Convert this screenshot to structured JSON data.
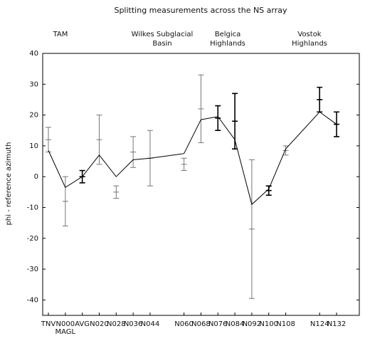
{
  "chart_data": {
    "type": "line",
    "title": "Splitting measurements across the NS array",
    "y_label": "phi - reference azimuth",
    "regions": [
      {
        "lines": [
          "TAM"
        ]
      },
      {
        "lines": [
          "Wilkes Subglacial",
          "Basin"
        ]
      },
      {
        "lines": [
          "Belgica",
          "Highlands"
        ]
      },
      {
        "lines": [
          "Vostok",
          "Highlands"
        ]
      }
    ],
    "categories": [
      "TNV",
      "N000",
      "AVG",
      "N020",
      "N028",
      "N036",
      "N044",
      "N060",
      "N068",
      "N076",
      "N084",
      "N092",
      "N100",
      "N108",
      "N124",
      "N132"
    ],
    "category_note": "MAGL",
    "ylim": [
      -45,
      40
    ],
    "yticks": [
      -40,
      -30,
      -20,
      -10,
      0,
      10,
      20,
      30,
      40
    ],
    "series": [
      {
        "color": "#000000",
        "values": [
          8.5,
          -3.5,
          0,
          7,
          0,
          5.5,
          6,
          7.5,
          18.5,
          19.5,
          12,
          -9,
          -4,
          9,
          21,
          17
        ]
      }
    ],
    "error_bars": [
      {
        "color": "#777777",
        "mid": [
          12,
          -8,
          null,
          12,
          -5,
          8,
          6,
          4,
          22,
          null,
          null,
          -17,
          null,
          8.5,
          null,
          null
        ],
        "low": [
          8,
          -16,
          null,
          4,
          -7,
          3,
          -3,
          2,
          11,
          null,
          null,
          -39.5,
          null,
          7,
          null,
          null
        ],
        "high": [
          16,
          0,
          null,
          20,
          -3,
          13,
          15,
          6,
          33,
          null,
          null,
          5.5,
          null,
          10,
          null,
          null
        ]
      },
      {
        "color": "#000000",
        "mid": [
          null,
          null,
          0,
          null,
          null,
          null,
          null,
          null,
          null,
          19,
          18,
          null,
          -4.5,
          null,
          25,
          17
        ],
        "low": [
          null,
          null,
          -2,
          null,
          null,
          null,
          null,
          null,
          null,
          15,
          9,
          null,
          -6,
          null,
          21,
          13
        ],
        "high": [
          null,
          null,
          2,
          null,
          null,
          null,
          null,
          null,
          null,
          23,
          27,
          null,
          -3,
          null,
          29,
          21
        ]
      }
    ]
  }
}
